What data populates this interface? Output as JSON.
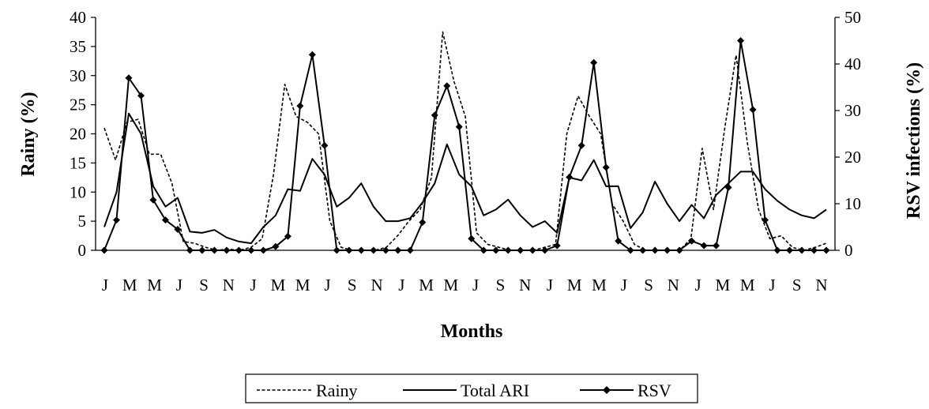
{
  "chart_data": {
    "type": "line",
    "xlabel": "Months",
    "ylabel_left": "Rainy (%)",
    "ylabel_right": "RSV infections (%)",
    "ylim_left": [
      0,
      40
    ],
    "ylim_right": [
      0,
      50
    ],
    "yticks_left": [
      "0",
      "5",
      "10",
      "15",
      "20",
      "25",
      "30",
      "35",
      "40"
    ],
    "yticks_right": [
      "0",
      "10",
      "20",
      "30",
      "40",
      "50"
    ],
    "x_tick_labels": [
      "J",
      "M",
      "M",
      "J",
      "S",
      "N",
      "J",
      "M",
      "M",
      "J",
      "S",
      "N",
      "J",
      "M",
      "M",
      "J",
      "S",
      "N",
      "J",
      "M",
      "M",
      "J",
      "S",
      "N",
      "J",
      "M",
      "M",
      "J",
      "S",
      "N"
    ],
    "grid": false,
    "legend_position": "bottom",
    "series": [
      {
        "name": "Rainy",
        "axis": "left",
        "style": "dashed",
        "values": [
          21,
          15.5,
          22,
          22.5,
          16.5,
          16.5,
          11.5,
          1.5,
          1.2,
          0.5,
          0,
          0.2,
          0,
          0.5,
          2,
          13,
          28.5,
          23,
          22,
          20,
          5,
          0.5,
          0,
          0,
          0,
          0.5,
          2.5,
          5,
          7,
          12.5,
          37.5,
          29,
          23,
          3,
          1,
          0.5,
          0,
          0,
          0,
          0.5,
          1,
          20,
          26.5,
          23,
          20,
          8,
          5,
          1,
          0,
          0,
          0,
          0,
          2,
          17.5,
          7,
          21,
          33.5,
          18.5,
          7,
          2,
          2.5,
          0.5,
          0,
          0.5,
          1.2
        ]
      },
      {
        "name": "Total ARI",
        "axis": "left",
        "style": "solid",
        "values": [
          4,
          10,
          23.5,
          20,
          11,
          7.5,
          9,
          3.2,
          3,
          3.5,
          2.2,
          1.5,
          1.2,
          4,
          6,
          10.5,
          10.2,
          15.7,
          13,
          7.5,
          9,
          11.5,
          7.5,
          5,
          5,
          5.5,
          8.2,
          11.5,
          18.2,
          13,
          11,
          6,
          7,
          8.7,
          6,
          4,
          5,
          3,
          12.5,
          12,
          15.5,
          11,
          11,
          3.8,
          6.5,
          11.8,
          8,
          5,
          7.8,
          5.5,
          9.5,
          11.5,
          13.5,
          13.5,
          10.5,
          8.5,
          7,
          6,
          5.5,
          7
        ]
      },
      {
        "name": "RSV",
        "axis": "right",
        "style": "solid-markers",
        "values": [
          0,
          6.5,
          37,
          33.2,
          10.8,
          6.5,
          4.5,
          0,
          0,
          0,
          0,
          0,
          0,
          0,
          0.8,
          3,
          31,
          42,
          22.5,
          0,
          0,
          0,
          0,
          0,
          0,
          0,
          6,
          29,
          35.3,
          26.5,
          2.5,
          0,
          0,
          0,
          0,
          0,
          0,
          1,
          15.7,
          22.5,
          40.3,
          17.8,
          2,
          0,
          0,
          0,
          0,
          0,
          2,
          1,
          1,
          13.5,
          45,
          30.2,
          6.5,
          0,
          0,
          0,
          0,
          0
        ]
      }
    ]
  }
}
